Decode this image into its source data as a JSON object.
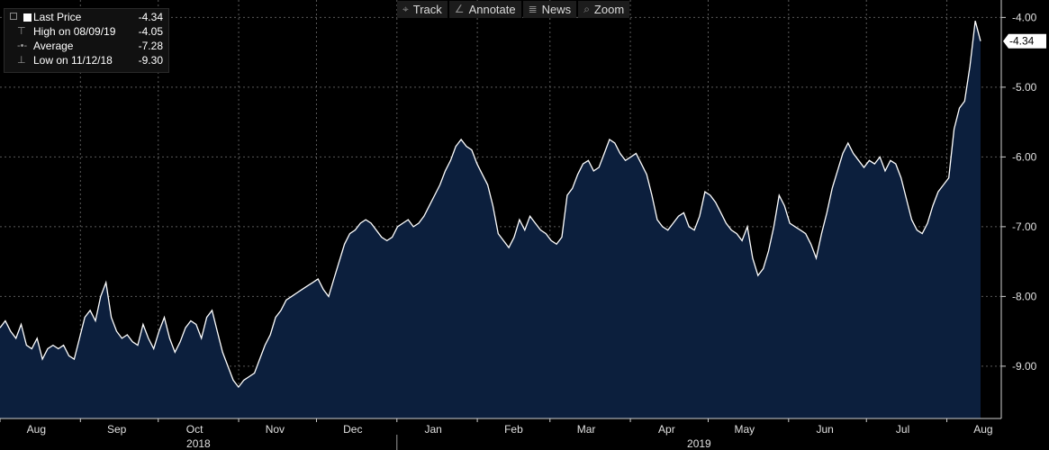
{
  "toolbar": {
    "items": [
      {
        "label": "Track",
        "icon": "crosshair-icon",
        "glyph": "⌖"
      },
      {
        "label": "Annotate",
        "icon": "pencil-icon",
        "glyph": "∠"
      },
      {
        "label": "News",
        "icon": "news-icon",
        "glyph": "≣"
      },
      {
        "label": "Zoom",
        "icon": "magnifier-icon",
        "glyph": "⌕"
      }
    ]
  },
  "legend": {
    "last": {
      "label": "Last Price",
      "value": "-4.34"
    },
    "high": {
      "label": "High on 08/09/19",
      "value": "-4.05"
    },
    "average": {
      "label": "Average",
      "value": "-7.28"
    },
    "low": {
      "label": "Low on 11/12/18",
      "value": "-9.30"
    }
  },
  "colors": {
    "background": "#000000",
    "area_fill": "#0c1f3d",
    "line": "#ffffff",
    "grid": "#5a5a5a"
  },
  "chart_data": {
    "type": "area",
    "title": "",
    "xlabel": "",
    "ylabel": "",
    "ylim": [
      -9.75,
      -3.75
    ],
    "y_ticks": [
      "-4.00",
      "-5.00",
      "-6.00",
      "-7.00",
      "-8.00",
      "-9.00"
    ],
    "y_tick_values": [
      -4,
      -5,
      -6,
      -7,
      -8,
      -9
    ],
    "x_months": [
      "Aug",
      "Sep",
      "Oct",
      "Nov",
      "Dec",
      "Jan",
      "Feb",
      "Mar",
      "Apr",
      "May",
      "Jun",
      "Jul",
      "Aug"
    ],
    "x_years": [
      "2018",
      "2019"
    ],
    "last_value_label": "-4.34",
    "grid": true,
    "series": [
      {
        "x_start": "2018-08-01",
        "x_end": "2019-08-14",
        "values": [
          -8.45,
          -8.35,
          -8.5,
          -8.6,
          -8.4,
          -8.7,
          -8.75,
          -8.6,
          -8.9,
          -8.75,
          -8.7,
          -8.75,
          -8.7,
          -8.85,
          -8.9,
          -8.6,
          -8.3,
          -8.2,
          -8.35,
          -8.0,
          -7.8,
          -8.3,
          -8.5,
          -8.6,
          -8.55,
          -8.65,
          -8.7,
          -8.4,
          -8.6,
          -8.75,
          -8.5,
          -8.3,
          -8.6,
          -8.8,
          -8.65,
          -8.45,
          -8.35,
          -8.4,
          -8.6,
          -8.3,
          -8.2,
          -8.5,
          -8.8,
          -9.0,
          -9.2,
          -9.3,
          -9.2,
          -9.15,
          -9.1,
          -8.9,
          -8.7,
          -8.55,
          -8.3,
          -8.2,
          -8.05,
          -8.0,
          -7.95,
          -7.9,
          -7.85,
          -7.8,
          -7.75,
          -7.9,
          -8.0,
          -7.75,
          -7.5,
          -7.25,
          -7.1,
          -7.05,
          -6.95,
          -6.9,
          -6.95,
          -7.05,
          -7.15,
          -7.2,
          -7.15,
          -7.0,
          -6.95,
          -6.9,
          -7.0,
          -6.95,
          -6.85,
          -6.7,
          -6.55,
          -6.4,
          -6.2,
          -6.05,
          -5.85,
          -5.75,
          -5.85,
          -5.9,
          -6.1,
          -6.25,
          -6.4,
          -6.7,
          -7.1,
          -7.2,
          -7.3,
          -7.15,
          -6.9,
          -7.05,
          -6.85,
          -6.95,
          -7.05,
          -7.1,
          -7.2,
          -7.25,
          -7.15,
          -6.55,
          -6.45,
          -6.25,
          -6.1,
          -6.05,
          -6.2,
          -6.15,
          -5.95,
          -5.75,
          -5.8,
          -5.95,
          -6.05,
          -6.0,
          -5.95,
          -6.1,
          -6.25,
          -6.55,
          -6.9,
          -7.0,
          -7.05,
          -6.95,
          -6.85,
          -6.8,
          -7.0,
          -7.05,
          -6.85,
          -6.5,
          -6.55,
          -6.65,
          -6.8,
          -6.95,
          -7.05,
          -7.1,
          -7.2,
          -7.0,
          -7.45,
          -7.7,
          -7.6,
          -7.35,
          -7.0,
          -6.55,
          -6.7,
          -6.95,
          -7.0,
          -7.05,
          -7.1,
          -7.25,
          -7.45,
          -7.1,
          -6.8,
          -6.45,
          -6.2,
          -5.95,
          -5.8,
          -5.95,
          -6.05,
          -6.15,
          -6.05,
          -6.1,
          -6.0,
          -6.2,
          -6.05,
          -6.1,
          -6.3,
          -6.6,
          -6.9,
          -7.05,
          -7.1,
          -6.95,
          -6.7,
          -6.5,
          -6.4,
          -6.3,
          -5.6,
          -5.3,
          -5.2,
          -4.7,
          -4.05,
          -4.34
        ]
      }
    ]
  }
}
